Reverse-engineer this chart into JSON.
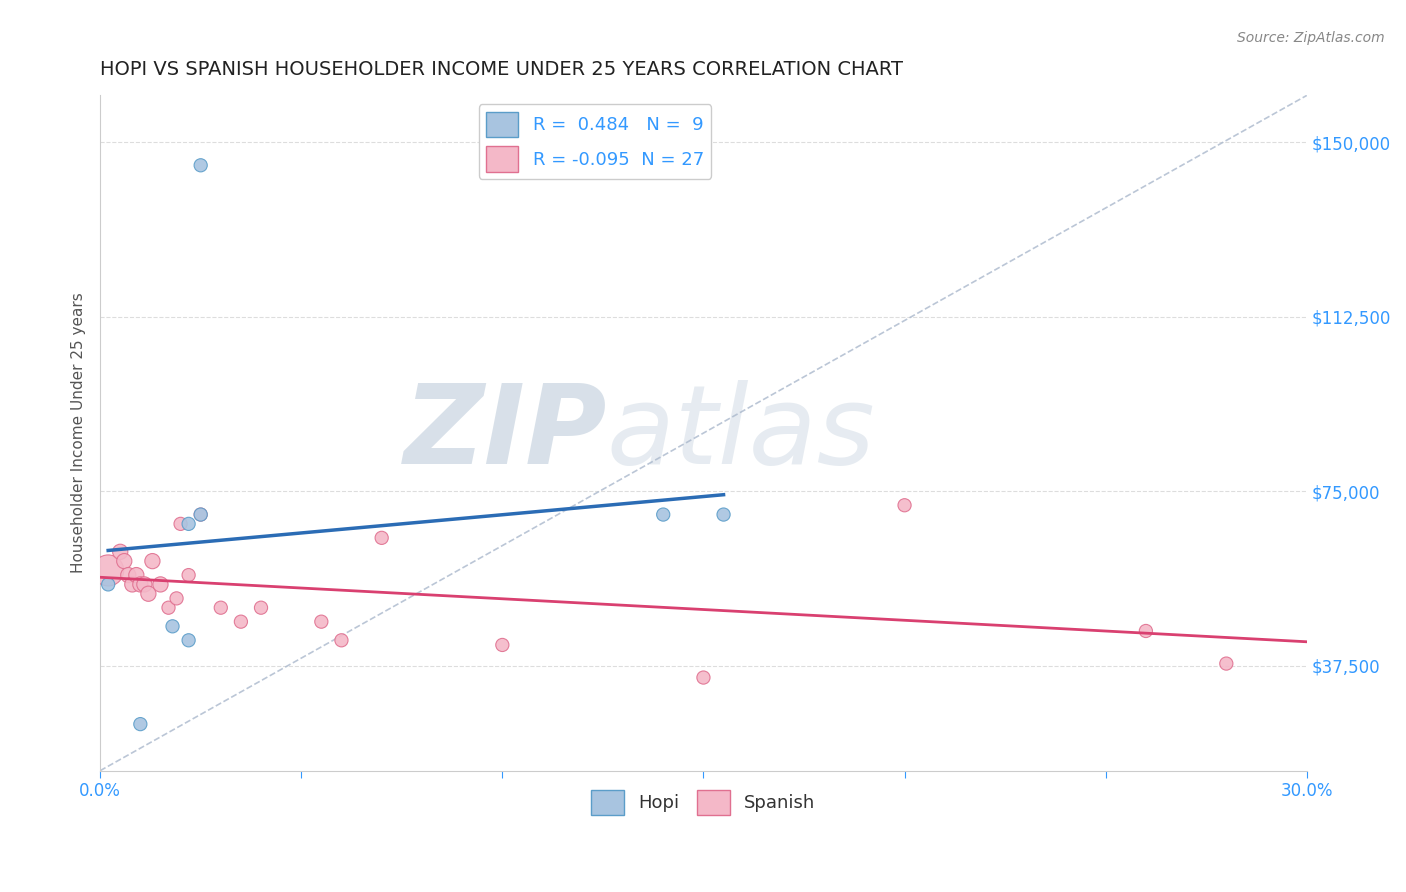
{
  "title": "HOPI VS SPANISH HOUSEHOLDER INCOME UNDER 25 YEARS CORRELATION CHART",
  "source": "Source: ZipAtlas.com",
  "ylabel": "Householder Income Under 25 years",
  "xlim": [
    0.0,
    0.3
  ],
  "ylim": [
    15000,
    160000
  ],
  "yticks": [
    37500,
    75000,
    112500,
    150000
  ],
  "background_color": "#ffffff",
  "watermark_zip": "ZIP",
  "watermark_atlas": "atlas",
  "hopi_x": [
    0.002,
    0.025,
    0.022,
    0.025,
    0.14,
    0.155,
    0.022,
    0.018,
    0.01
  ],
  "hopi_y": [
    55000,
    145000,
    68000,
    70000,
    70000,
    70000,
    43000,
    46000,
    25000
  ],
  "spanish_x": [
    0.002,
    0.005,
    0.006,
    0.007,
    0.008,
    0.009,
    0.01,
    0.011,
    0.012,
    0.013,
    0.015,
    0.017,
    0.019,
    0.02,
    0.022,
    0.025,
    0.03,
    0.035,
    0.04,
    0.055,
    0.06,
    0.07,
    0.1,
    0.15,
    0.2,
    0.26,
    0.28
  ],
  "spanish_y": [
    58000,
    62000,
    60000,
    57000,
    55000,
    57000,
    55000,
    55000,
    53000,
    60000,
    55000,
    50000,
    52000,
    68000,
    57000,
    70000,
    50000,
    47000,
    50000,
    47000,
    43000,
    65000,
    42000,
    35000,
    72000,
    45000,
    38000
  ],
  "hopi_color": "#a8c4e0",
  "hopi_edge_color": "#5b9dc9",
  "spanish_color": "#f4b8c8",
  "spanish_edge_color": "#e07090",
  "hopi_R": 0.484,
  "hopi_N": 9,
  "spanish_R": -0.095,
  "spanish_N": 27,
  "regression_hopi_color": "#2b6cb5",
  "regression_spanish_color": "#d94070",
  "diag_line_color": "#aab8cc",
  "title_color": "#222222",
  "axis_label_color": "#555555",
  "tick_color": "#3399ff",
  "grid_color": "#dddddd",
  "marker_size": 80
}
